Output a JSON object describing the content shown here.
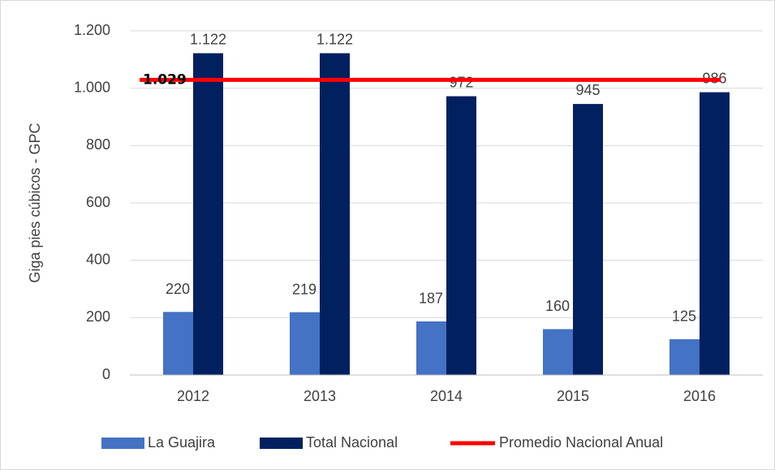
{
  "chart_data": {
    "type": "bar",
    "y_label": "Giga pies cúbicos - GPC",
    "categories": [
      "2012",
      "2013",
      "2014",
      "2015",
      "2016"
    ],
    "series": [
      {
        "name": "La Guajira",
        "color": "#4472c4",
        "values": [
          220,
          219,
          187,
          160,
          125
        ]
      },
      {
        "name": "Total Nacional",
        "color": "#002060",
        "values": [
          1122,
          1122,
          972,
          945,
          986
        ],
        "value_labels": [
          "1.122",
          "1.122",
          "972",
          "945",
          "986"
        ]
      }
    ],
    "reference_lines": [
      {
        "name": "Promedio Nacional Anual",
        "value": 1029,
        "label": "1.029",
        "color": "#ff0000"
      }
    ],
    "ylim": [
      0,
      1200
    ],
    "yticks": [
      0,
      200,
      400,
      600,
      800,
      {
        "value": 1000,
        "label": "1.000"
      },
      {
        "value": 1200,
        "label": "1.200"
      }
    ],
    "grid": true,
    "legend": "bottom"
  }
}
